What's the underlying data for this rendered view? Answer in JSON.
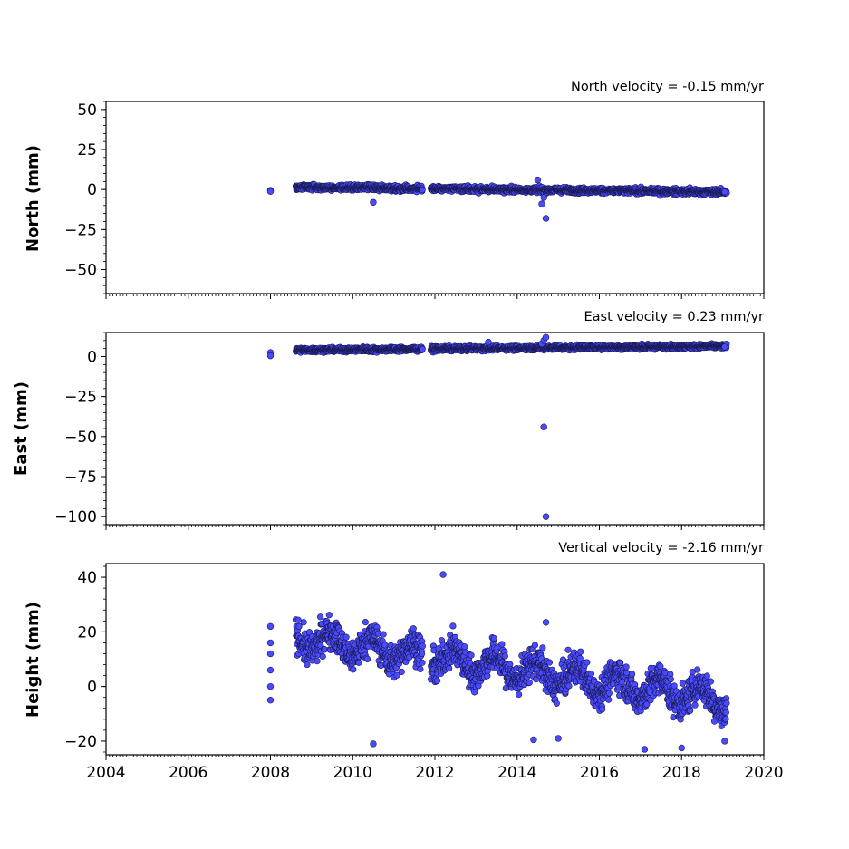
{
  "colors": {
    "marker_fill": "#4a4aff",
    "marker_edge": "#1a1a55",
    "axes": "#000000"
  },
  "chart_data": [
    {
      "type": "scatter",
      "title": "North velocity = -0.15 mm/yr",
      "xlabel": "",
      "ylabel": "North (mm)",
      "xlim": [
        2004,
        2020
      ],
      "ylim": [
        -65,
        55
      ],
      "xticks": [
        2004,
        2006,
        2008,
        2010,
        2012,
        2014,
        2016,
        2018,
        2020
      ],
      "yticks": [
        50,
        25,
        0,
        -25,
        -50
      ],
      "ytick_labels": [
        "50",
        "25",
        "0",
        "−25",
        "−50"
      ],
      "show_xtick_labels": false,
      "series": [
        {
          "segments": [
            [
              2008.62,
              2011.7
            ],
            [
              2011.9,
              2019.1
            ]
          ],
          "baseline": [
            1.5,
            -1.5
          ],
          "noise": 1.6
        }
      ],
      "points": [
        [
          2008.0,
          -0.5
        ],
        [
          2008.0,
          -1.2
        ],
        [
          2010.5,
          -8
        ],
        [
          2014.6,
          -9
        ],
        [
          2014.65,
          -5
        ],
        [
          2014.7,
          -18
        ],
        [
          2014.5,
          6
        ],
        [
          2019.05,
          -1.5
        ]
      ]
    },
    {
      "type": "scatter",
      "title": "East velocity = 0.23 mm/yr",
      "xlabel": "",
      "ylabel": "East (mm)",
      "xlim": [
        2004,
        2020
      ],
      "ylim": [
        -105,
        15
      ],
      "xticks": [
        2004,
        2006,
        2008,
        2010,
        2012,
        2014,
        2016,
        2018,
        2020
      ],
      "yticks": [
        0,
        -25,
        -50,
        -75,
        -100
      ],
      "ytick_labels": [
        "0",
        "−25",
        "−50",
        "−75",
        "−100"
      ],
      "show_xtick_labels": false,
      "series": [
        {
          "segments": [
            [
              2008.62,
              2011.7
            ],
            [
              2011.9,
              2019.1
            ]
          ],
          "baseline": [
            4.0,
            6.5
          ],
          "noise": 1.3
        }
      ],
      "points": [
        [
          2008.0,
          2.5
        ],
        [
          2008.0,
          0.5
        ],
        [
          2014.6,
          8
        ],
        [
          2014.65,
          10
        ],
        [
          2014.7,
          12
        ],
        [
          2013.3,
          9
        ],
        [
          2014.65,
          -44
        ],
        [
          2014.7,
          -100
        ],
        [
          2019.05,
          6
        ]
      ]
    },
    {
      "type": "scatter",
      "title": "Vertical velocity = -2.16 mm/yr",
      "xlabel": "",
      "ylabel": "Height (mm)",
      "xlim": [
        2004,
        2020
      ],
      "ylim": [
        -25,
        45
      ],
      "xticks": [
        2004,
        2006,
        2008,
        2010,
        2012,
        2014,
        2016,
        2018,
        2020
      ],
      "xtick_labels": [
        "2004",
        "2006",
        "2008",
        "2010",
        "2012",
        "2014",
        "2016",
        "2018",
        "2020"
      ],
      "yticks": [
        40,
        20,
        0,
        -20
      ],
      "ytick_labels": [
        "40",
        "20",
        "0",
        "−20"
      ],
      "show_xtick_labels": true,
      "series": [
        {
          "segments": [
            [
              2008.62,
              2011.7
            ],
            [
              2011.9,
              2019.1
            ]
          ],
          "baseline": [
            18,
            -5
          ],
          "noise": 5.5
        }
      ],
      "points": [
        [
          2008.0,
          22
        ],
        [
          2008.0,
          16
        ],
        [
          2008.0,
          12
        ],
        [
          2008.0,
          6
        ],
        [
          2008.0,
          0
        ],
        [
          2008.0,
          -5
        ],
        [
          2012.2,
          41
        ],
        [
          2010.5,
          -21
        ],
        [
          2014.4,
          -19.5
        ],
        [
          2014.7,
          23.5
        ],
        [
          2015.0,
          -19
        ],
        [
          2017.1,
          -23
        ],
        [
          2018.0,
          -22.5
        ],
        [
          2019.05,
          -20
        ]
      ]
    }
  ]
}
